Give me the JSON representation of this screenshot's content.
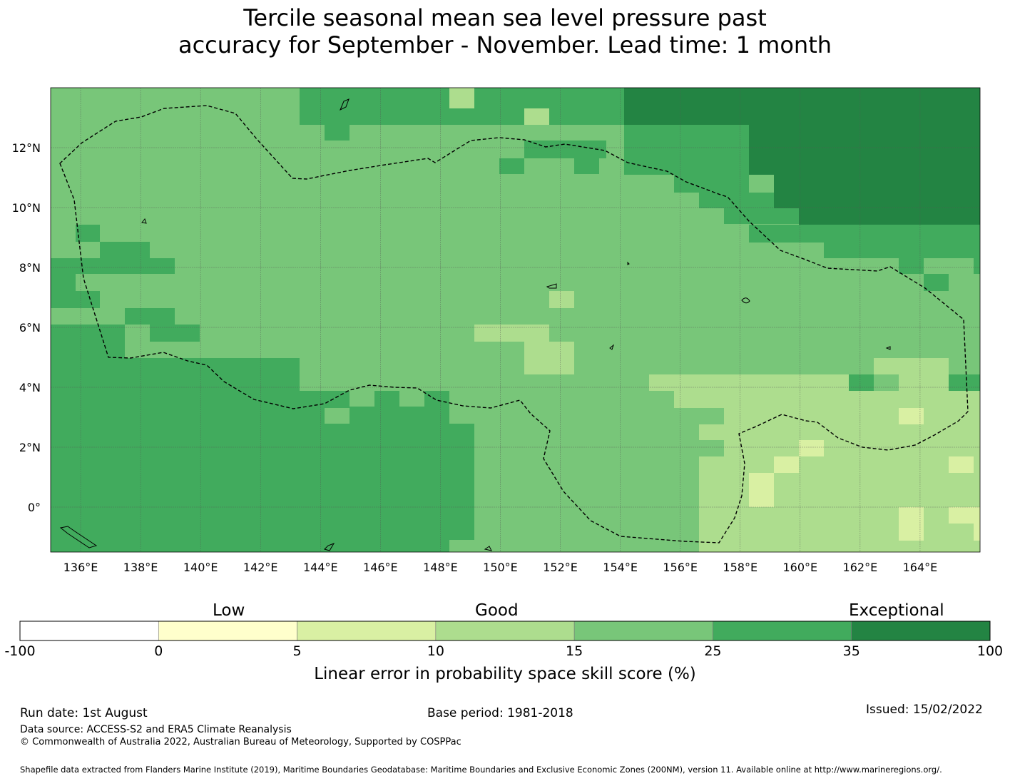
{
  "title": {
    "line1": "Tercile seasonal mean sea level pressure past",
    "line2": "accuracy for September - November. Lead time: 1 month"
  },
  "map": {
    "lon_ticks": [
      "136°E",
      "138°E",
      "140°E",
      "142°E",
      "144°E",
      "146°E",
      "148°E",
      "150°E",
      "152°E",
      "154°E",
      "156°E",
      "158°E",
      "160°E",
      "162°E",
      "164°E"
    ],
    "lat_ticks": [
      "12°N",
      "10°N",
      "8°N",
      "6°N",
      "4°N",
      "2°N",
      "0°"
    ],
    "lon_values": [
      136,
      138,
      140,
      142,
      144,
      146,
      148,
      150,
      152,
      154,
      156,
      158,
      160,
      162,
      164
    ],
    "lat_values": [
      12,
      10,
      8,
      6,
      4,
      2,
      0
    ],
    "extent": {
      "lon_min": 135,
      "lon_max": 166,
      "lat_min": -1.5,
      "lat_max": 14
    },
    "grid": true,
    "region_boundary": "dashed line (EEZ outline)"
  },
  "colorbar": {
    "category_labels": [
      "Low",
      "Good",
      "Exceptional"
    ],
    "ticks": [
      "-100",
      "0",
      "5",
      "10",
      "15",
      "25",
      "35",
      "100"
    ],
    "colors": [
      "#ffffff",
      "#ffffcc",
      "#d9f0a3",
      "#addd8e",
      "#78c679",
      "#41ab5d",
      "#238443"
    ],
    "title": "Linear error in probability space skill score (%)"
  },
  "footer": {
    "run_date": "Run date: 1st August",
    "base_period": "Base period: 1981-2018",
    "issued": "Issued: 15/02/2022",
    "data_source": "Data source: ACCESS-S2 and ERA5 Climate Reanalysis",
    "copyright": "© Commonwealth of Australia 2022, Australian Bureau of Meteorology, Supported by COSPPac",
    "shapefile_note": "Shapefile data extracted from Flanders Marine Institute (2019), Maritime Boundaries Geodatabase: Maritime Boundaries and Exclusive Economic Zones (200NM), version 11. Available online at http://www.marineregions.org/."
  }
}
